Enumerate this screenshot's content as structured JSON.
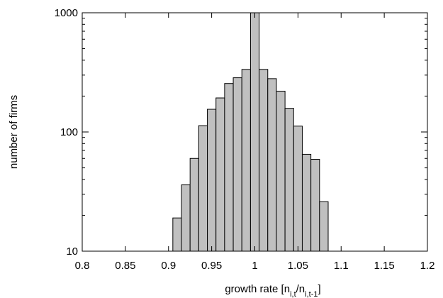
{
  "chart_data": {
    "type": "bar",
    "bar_color": "#c0c0c0",
    "edge_color": "#000000",
    "x_scale": "linear",
    "y_scale": "log",
    "xlim": [
      0.8,
      1.2
    ],
    "ylim": [
      10,
      1000
    ],
    "x_ticks": [
      "0.8",
      "0.85",
      "0.9",
      "0.95",
      "1",
      "1.05",
      "1.1",
      "1.15",
      "1.2"
    ],
    "y_ticks": [
      "10",
      "100",
      "1000"
    ],
    "ylabel": "number of firms",
    "xlabel": {
      "text": "growth rate [n",
      "sub1": "i,t",
      "mid": "/n",
      "sub2": "i,t-1",
      "end": "]"
    },
    "bin_width": 0.01,
    "bins": [
      {
        "x": 0.91,
        "y": 19
      },
      {
        "x": 0.92,
        "y": 36
      },
      {
        "x": 0.93,
        "y": 60
      },
      {
        "x": 0.94,
        "y": 113
      },
      {
        "x": 0.95,
        "y": 155
      },
      {
        "x": 0.96,
        "y": 193
      },
      {
        "x": 0.97,
        "y": 255
      },
      {
        "x": 0.98,
        "y": 285
      },
      {
        "x": 0.99,
        "y": 335
      },
      {
        "x": 1.0,
        "y": 1000
      },
      {
        "x": 1.01,
        "y": 335
      },
      {
        "x": 1.02,
        "y": 280
      },
      {
        "x": 1.03,
        "y": 220
      },
      {
        "x": 1.04,
        "y": 158
      },
      {
        "x": 1.05,
        "y": 112
      },
      {
        "x": 1.06,
        "y": 65
      },
      {
        "x": 1.07,
        "y": 59
      },
      {
        "x": 1.08,
        "y": 26
      }
    ]
  }
}
